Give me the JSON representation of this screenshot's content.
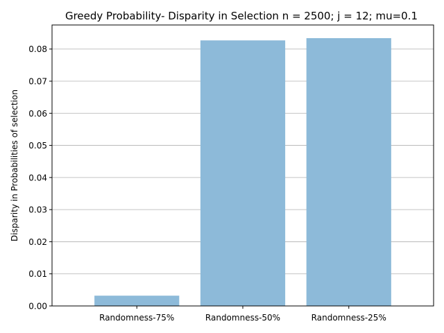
{
  "chart_data": {
    "type": "bar",
    "title": "Greedy Probability- Disparity in Selection n = 2500; j = 12; mu=0.1",
    "xlabel": "",
    "ylabel": "Disparity in Probabilities of selection",
    "categories": [
      "Randomness-75%",
      "Randomness-50%",
      "Randomness-25%"
    ],
    "values": [
      0.0032,
      0.0827,
      0.0834
    ],
    "ylim": [
      0,
      0.0875
    ],
    "yticks": [
      0.0,
      0.01,
      0.02,
      0.03,
      0.04,
      0.05,
      0.06,
      0.07,
      0.08
    ],
    "ytick_labels": [
      "0.00",
      "0.01",
      "0.02",
      "0.03",
      "0.04",
      "0.05",
      "0.06",
      "0.07",
      "0.08"
    ],
    "grid": "y-major",
    "bar_color": "#8DBAD9",
    "grid_color": "#B0B0B0"
  }
}
